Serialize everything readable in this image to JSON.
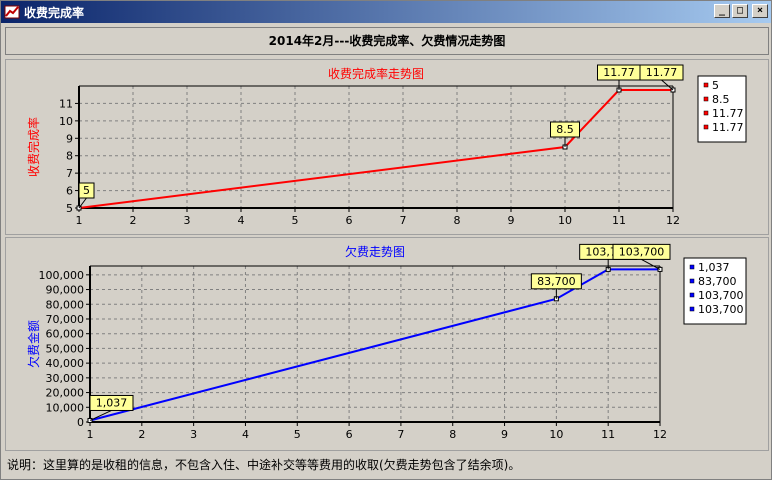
{
  "window": {
    "title": "收费完成率",
    "minimize_glyph": "_",
    "maximize_glyph": "□",
    "close_glyph": "×"
  },
  "header": {
    "title": "2014年2月---收费完成率、欠费情况走势图"
  },
  "chart_data": [
    {
      "type": "line",
      "title": "收费完成率走势图",
      "xlabel": "",
      "ylabel": "收费完成率",
      "color": "#ff0000",
      "categories": [
        "1",
        "2",
        "3",
        "4",
        "5",
        "6",
        "7",
        "8",
        "9",
        "10",
        "11",
        "12"
      ],
      "x": [
        1,
        10,
        11,
        12
      ],
      "y": [
        5,
        8.5,
        11.77,
        11.77
      ],
      "data_labels": [
        "5",
        "8.5",
        "11.77",
        "11.77"
      ],
      "xlim": [
        1,
        12
      ],
      "ylim": [
        5,
        12
      ],
      "yticks": [
        5,
        6,
        7,
        8,
        9,
        10,
        11
      ],
      "ytick_labels": [
        "5",
        "6",
        "7",
        "8",
        "9",
        "10",
        "11"
      ],
      "grid": true,
      "legend": [
        "5",
        "8.5",
        "11.77",
        "11.77"
      ],
      "legend_position": "right"
    },
    {
      "type": "line",
      "title": "欠费走势图",
      "xlabel": "",
      "ylabel": "欠费金额",
      "color": "#0000ff",
      "categories": [
        "1",
        "2",
        "3",
        "4",
        "5",
        "6",
        "7",
        "8",
        "9",
        "10",
        "11",
        "12"
      ],
      "x": [
        1,
        10,
        11,
        12
      ],
      "y": [
        1037,
        83700,
        103700,
        103700
      ],
      "data_labels": [
        "1,037",
        "83,700",
        "103,700",
        "103,700"
      ],
      "xlim": [
        1,
        12
      ],
      "ylim": [
        0,
        106000
      ],
      "yticks": [
        0,
        10000,
        20000,
        30000,
        40000,
        50000,
        60000,
        70000,
        80000,
        90000,
        100000
      ],
      "ytick_labels": [
        "0",
        "10,000",
        "20,000",
        "30,000",
        "40,000",
        "50,000",
        "60,000",
        "70,000",
        "80,000",
        "90,000",
        "100,000"
      ],
      "grid": true,
      "legend": [
        "1,037",
        "83,700",
        "103,700",
        "103,700"
      ],
      "legend_position": "right"
    }
  ],
  "footer": {
    "note": "说明：这里算的是收租的信息，不包含入住、中途补交等等费用的收取(欠费走势包含了结余项)。"
  }
}
